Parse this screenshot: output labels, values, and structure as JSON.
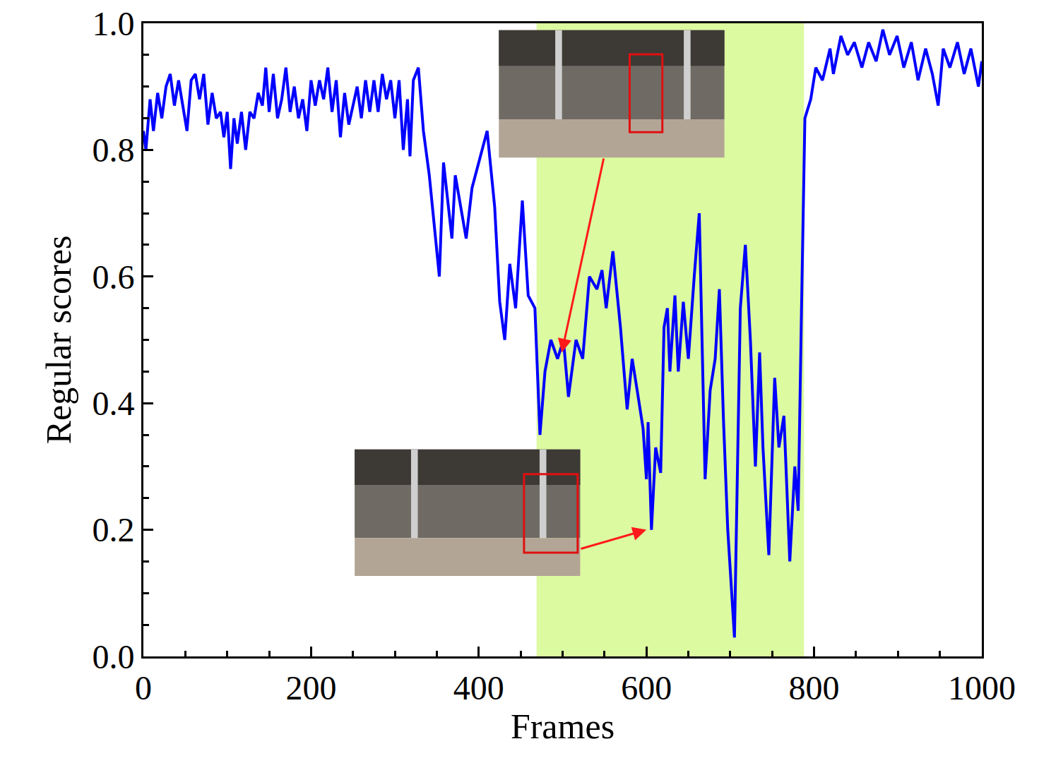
{
  "chart_data": {
    "type": "line",
    "x_label": "Frames",
    "y_label": "Regular scores",
    "color": "#0000ff",
    "xlim": [
      0,
      1000
    ],
    "xticks": [
      0,
      200,
      400,
      600,
      800,
      1000
    ],
    "ylim": [
      0,
      1
    ],
    "yticks": [
      {
        "value": 0,
        "label": "0.0"
      },
      0.2,
      0.4,
      0.6,
      0.8,
      {
        "value": 1,
        "label": "1.0"
      }
    ],
    "grid": false,
    "shaded_span": {
      "x": [
        469,
        788
      ],
      "color": "#dcfaa0"
    },
    "callouts": [
      {
        "x": 499,
        "y": 0.48
      },
      {
        "x": 600,
        "y": 0.2
      }
    ],
    "x": [
      0,
      3,
      8,
      12,
      17,
      22,
      27,
      32,
      37,
      42,
      47,
      52,
      57,
      62,
      67,
      72,
      77,
      82,
      87,
      92,
      96,
      100,
      104,
      108,
      112,
      117,
      122,
      127,
      132,
      137,
      142,
      146,
      150,
      155,
      160,
      165,
      170,
      175,
      180,
      185,
      190,
      195,
      200,
      205,
      210,
      215,
      220,
      225,
      230,
      235,
      240,
      245,
      250,
      255,
      260,
      265,
      270,
      275,
      280,
      285,
      290,
      295,
      300,
      305,
      310,
      315,
      318,
      322,
      328,
      334,
      341,
      353,
      358,
      368,
      372,
      385,
      392,
      410,
      419,
      425,
      431,
      437,
      444,
      452,
      459,
      467,
      473,
      479,
      486,
      494,
      501,
      507,
      516,
      524,
      532,
      541,
      547,
      552,
      560,
      569,
      577,
      583,
      589,
      596,
      600,
      602,
      606,
      611,
      617,
      621,
      625,
      628,
      634,
      638,
      644,
      650,
      657,
      663,
      670,
      676,
      682,
      687,
      692,
      697,
      705,
      712,
      718,
      724,
      730,
      735,
      739,
      746,
      753,
      758,
      764,
      771,
      777,
      781,
      785,
      789,
      796,
      802,
      810,
      819,
      823,
      832,
      840,
      848,
      857,
      865,
      874,
      882,
      890,
      899,
      907,
      916,
      924,
      933,
      941,
      948,
      954,
      962,
      971,
      979,
      987,
      996,
      1000
    ],
    "values": [
      0.83,
      0.8,
      0.88,
      0.83,
      0.89,
      0.85,
      0.9,
      0.92,
      0.87,
      0.91,
      0.87,
      0.83,
      0.91,
      0.92,
      0.88,
      0.92,
      0.84,
      0.89,
      0.85,
      0.86,
      0.82,
      0.86,
      0.77,
      0.85,
      0.81,
      0.86,
      0.8,
      0.86,
      0.85,
      0.89,
      0.87,
      0.93,
      0.86,
      0.92,
      0.85,
      0.88,
      0.93,
      0.86,
      0.9,
      0.85,
      0.88,
      0.83,
      0.91,
      0.87,
      0.91,
      0.88,
      0.93,
      0.86,
      0.91,
      0.82,
      0.89,
      0.84,
      0.87,
      0.9,
      0.85,
      0.91,
      0.86,
      0.91,
      0.86,
      0.92,
      0.88,
      0.91,
      0.85,
      0.91,
      0.8,
      0.88,
      0.79,
      0.91,
      0.93,
      0.83,
      0.76,
      0.6,
      0.78,
      0.66,
      0.76,
      0.66,
      0.74,
      0.83,
      0.71,
      0.56,
      0.5,
      0.62,
      0.55,
      0.72,
      0.57,
      0.55,
      0.35,
      0.45,
      0.5,
      0.47,
      0.5,
      0.41,
      0.5,
      0.47,
      0.6,
      0.58,
      0.61,
      0.55,
      0.64,
      0.52,
      0.39,
      0.47,
      0.42,
      0.36,
      0.28,
      0.37,
      0.2,
      0.33,
      0.29,
      0.52,
      0.55,
      0.45,
      0.57,
      0.45,
      0.56,
      0.47,
      0.6,
      0.7,
      0.28,
      0.42,
      0.47,
      0.58,
      0.37,
      0.2,
      0.03,
      0.55,
      0.65,
      0.5,
      0.3,
      0.48,
      0.33,
      0.16,
      0.44,
      0.33,
      0.38,
      0.15,
      0.3,
      0.23,
      0.55,
      0.85,
      0.88,
      0.93,
      0.91,
      0.96,
      0.92,
      0.98,
      0.95,
      0.97,
      0.93,
      0.97,
      0.94,
      0.99,
      0.95,
      0.98,
      0.93,
      0.97,
      0.91,
      0.96,
      0.92,
      0.87,
      0.96,
      0.93,
      0.97,
      0.92,
      0.96,
      0.9,
      0.94
    ]
  }
}
